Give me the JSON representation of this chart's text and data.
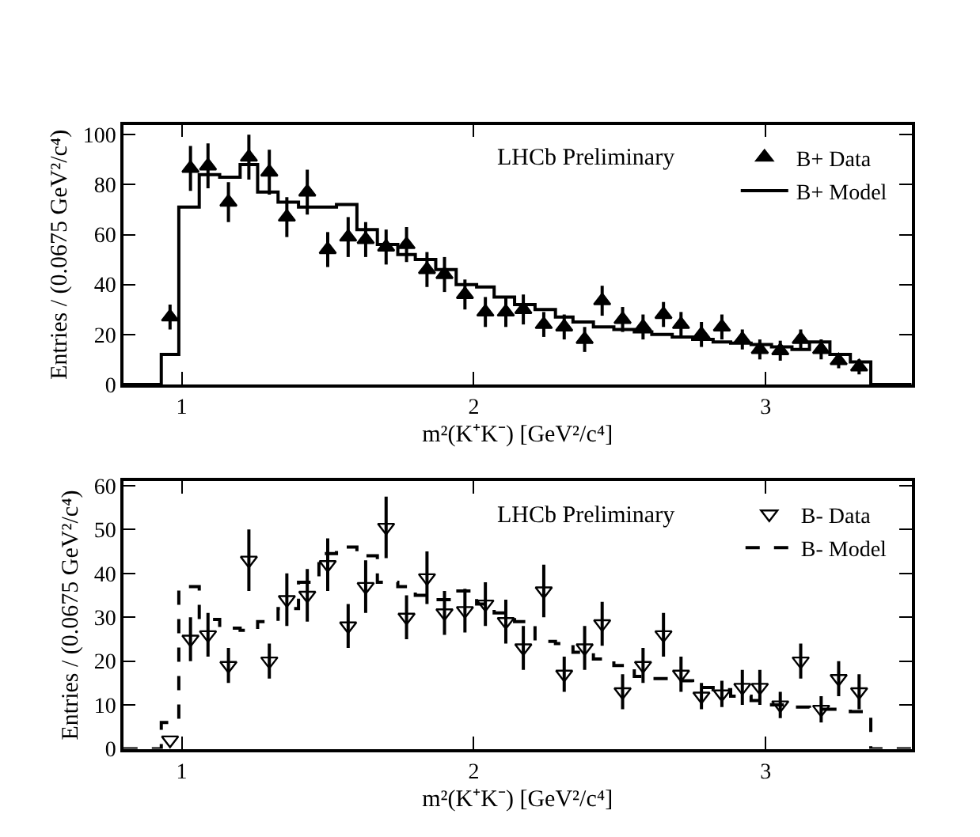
{
  "chart_data": [
    {
      "type": "scatter",
      "xlabel": "m²(K⁺K⁻) [GeV²/c⁴]",
      "ylabel": "Entries / (0.0675 GeV²/c⁴)",
      "annotations": [
        "LHCb Preliminary"
      ],
      "legend": "top right",
      "xlim": [
        0.8,
        3.5
      ],
      "ylim": [
        0,
        104
      ],
      "xticks": [
        1,
        2,
        3
      ],
      "yticks": [
        0,
        20,
        40,
        60,
        80,
        100
      ],
      "series": [
        {
          "name": "B+ Data",
          "marker": "triangle",
          "color": "#000000",
          "x": [
            0.96,
            1.03,
            1.09,
            1.16,
            1.23,
            1.3,
            1.36,
            1.43,
            1.5,
            1.57,
            1.63,
            1.7,
            1.77,
            1.84,
            1.9,
            1.97,
            2.04,
            2.11,
            2.17,
            2.24,
            2.31,
            2.38,
            2.44,
            2.51,
            2.58,
            2.65,
            2.71,
            2.78,
            2.85,
            2.92,
            2.98,
            3.05,
            3.12,
            3.19,
            3.25,
            3.32
          ],
          "values": [
            27,
            86.5,
            87.5,
            73,
            91,
            85,
            67,
            77,
            54,
            59,
            58,
            55,
            56,
            46,
            44,
            36,
            29,
            29,
            30,
            24,
            23,
            18,
            33.5,
            26,
            23,
            28,
            24,
            20,
            23,
            18,
            14,
            13.5,
            18,
            14,
            9.5,
            7
          ],
          "errors": [
            5,
            9,
            9,
            8,
            9,
            9,
            8,
            9,
            7,
            8,
            7,
            7,
            7,
            7,
            7,
            6,
            6,
            6,
            6,
            5,
            5,
            5,
            6,
            5,
            5,
            5,
            5,
            5,
            5,
            4,
            4,
            4,
            4,
            4,
            3,
            3
          ]
        },
        {
          "name": "B+ Model",
          "type": "step",
          "line_style": "solid",
          "color": "#000000",
          "x": [
            0.8,
            0.93,
            0.99,
            1.06,
            1.13,
            1.2,
            1.26,
            1.33,
            1.4,
            1.47,
            1.53,
            1.6,
            1.67,
            1.74,
            1.8,
            1.87,
            1.94,
            2.01,
            2.07,
            2.14,
            2.21,
            2.28,
            2.34,
            2.41,
            2.48,
            2.55,
            2.61,
            2.68,
            2.75,
            2.82,
            2.88,
            2.95,
            3.02,
            3.09,
            3.15,
            3.22,
            3.29,
            3.36,
            3.5
          ],
          "values": [
            0,
            12,
            71,
            84,
            83,
            88,
            77,
            73,
            71,
            71,
            72,
            62,
            56,
            52,
            50,
            46,
            40,
            39,
            35,
            32,
            30,
            27,
            25,
            23,
            22,
            21,
            20,
            19,
            18,
            17,
            16.5,
            16,
            15,
            14,
            17,
            12,
            9,
            0,
            0
          ]
        }
      ]
    },
    {
      "type": "scatter",
      "xlabel": "m²(K⁺K⁻) [GeV²/c⁴]",
      "ylabel": "Entries / (0.0675 GeV²/c⁴)",
      "annotations": [
        "LHCb Preliminary"
      ],
      "legend": "top right",
      "xlim": [
        0.8,
        3.5
      ],
      "ylim": [
        0,
        61
      ],
      "xticks": [
        1,
        2,
        3
      ],
      "yticks": [
        0,
        10,
        20,
        30,
        40,
        50,
        60
      ],
      "series": [
        {
          "name": "B- Data",
          "marker": "triangle-down-open",
          "color": "#000000",
          "x": [
            0.96,
            1.03,
            1.09,
            1.16,
            1.23,
            1.3,
            1.36,
            1.43,
            1.5,
            1.57,
            1.63,
            1.7,
            1.77,
            1.84,
            1.9,
            1.97,
            2.04,
            2.11,
            2.17,
            2.24,
            2.31,
            2.38,
            2.44,
            2.51,
            2.58,
            2.65,
            2.71,
            2.78,
            2.85,
            2.92,
            2.98,
            3.05,
            3.12,
            3.19,
            3.25,
            3.32
          ],
          "values": [
            2,
            25,
            26,
            19,
            43,
            20,
            34,
            35,
            42,
            28,
            37,
            50.5,
            30,
            39,
            31,
            31.5,
            33,
            29,
            23,
            36,
            17,
            23,
            28.5,
            13,
            19,
            26,
            17,
            12,
            12.5,
            14,
            14,
            10,
            20,
            9,
            16,
            13
          ],
          "errors": [
            null,
            5,
            5,
            4,
            7,
            4,
            6,
            6,
            6,
            5,
            6,
            7,
            5,
            6,
            5,
            5,
            5,
            5,
            5,
            6,
            4,
            5,
            5,
            4,
            4,
            5,
            4,
            3,
            3,
            4,
            4,
            3,
            4,
            3,
            4,
            4
          ]
        },
        {
          "name": "B- Model",
          "type": "step",
          "line_style": "dashed",
          "color": "#000000",
          "x": [
            0.8,
            0.93,
            0.99,
            1.06,
            1.13,
            1.2,
            1.26,
            1.33,
            1.4,
            1.47,
            1.53,
            1.6,
            1.67,
            1.74,
            1.8,
            1.87,
            1.94,
            2.01,
            2.07,
            2.14,
            2.21,
            2.28,
            2.34,
            2.41,
            2.48,
            2.55,
            2.61,
            2.68,
            2.75,
            2.82,
            2.88,
            2.95,
            3.02,
            3.09,
            3.15,
            3.22,
            3.29,
            3.36,
            3.5
          ],
          "values": [
            0,
            6,
            37,
            29.5,
            27.5,
            27,
            29,
            32,
            38,
            44.5,
            46,
            44,
            38,
            37,
            35,
            34,
            36,
            33,
            31,
            29,
            24.5,
            24,
            22,
            20.5,
            19,
            16.5,
            16,
            15.5,
            14,
            13.5,
            12,
            11,
            10,
            9.5,
            9,
            9,
            8.5,
            0,
            0
          ]
        }
      ]
    }
  ]
}
